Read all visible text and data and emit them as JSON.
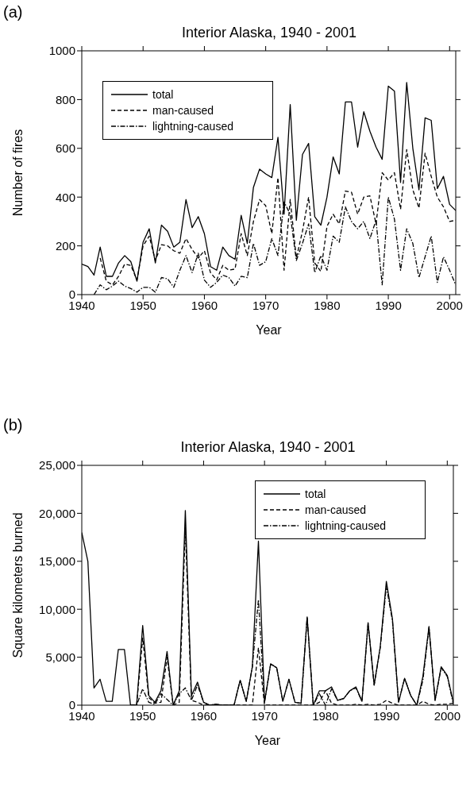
{
  "chart_data": [
    {
      "type": "line",
      "title": "Interior Alaska, 1940 - 2001",
      "annotations": [
        "(a)"
      ],
      "xlabel": "Year",
      "ylabel": "Number of fires",
      "x": [
        1940,
        1941,
        1942,
        1943,
        1944,
        1945,
        1946,
        1947,
        1948,
        1949,
        1950,
        1951,
        1952,
        1953,
        1954,
        1955,
        1956,
        1957,
        1958,
        1959,
        1960,
        1961,
        1962,
        1963,
        1964,
        1965,
        1966,
        1967,
        1968,
        1969,
        1970,
        1971,
        1972,
        1973,
        1974,
        1975,
        1976,
        1977,
        1978,
        1979,
        1980,
        1981,
        1982,
        1983,
        1984,
        1985,
        1986,
        1987,
        1988,
        1989,
        1990,
        1991,
        1992,
        1993,
        1994,
        1995,
        1996,
        1997,
        1998,
        1999,
        2000,
        2001
      ],
      "series": [
        {
          "name": "total",
          "color": "#000000",
          "line_style": "solid",
          "values": [
            125,
            115,
            80,
            195,
            75,
            75,
            130,
            160,
            135,
            55,
            215,
            270,
            130,
            285,
            260,
            195,
            215,
            390,
            275,
            320,
            250,
            115,
            100,
            195,
            160,
            145,
            325,
            210,
            440,
            515,
            495,
            480,
            645,
            330,
            780,
            305,
            575,
            620,
            320,
            285,
            400,
            565,
            495,
            790,
            790,
            605,
            750,
            670,
            605,
            555,
            855,
            835,
            460,
            870,
            600,
            430,
            725,
            715,
            435,
            485,
            370,
            345
          ]
        },
        {
          "name": "man-caused",
          "color": "#000000",
          "line_style": "dashed",
          "values": [
            null,
            null,
            null,
            150,
            55,
            40,
            75,
            125,
            120,
            60,
            200,
            240,
            140,
            205,
            200,
            180,
            170,
            230,
            185,
            150,
            180,
            90,
            60,
            120,
            100,
            105,
            250,
            160,
            300,
            390,
            365,
            250,
            480,
            100,
            390,
            150,
            260,
            400,
            130,
            95,
            280,
            330,
            290,
            425,
            420,
            330,
            400,
            405,
            290,
            500,
            470,
            500,
            350,
            595,
            430,
            355,
            580,
            485,
            400,
            360,
            300,
            305
          ]
        },
        {
          "name": "lightning-caused",
          "color": "#000000",
          "line_style": "dotted",
          "values": [
            null,
            null,
            0,
            40,
            20,
            35,
            55,
            35,
            25,
            10,
            30,
            30,
            10,
            70,
            65,
            30,
            100,
            160,
            90,
            170,
            60,
            30,
            50,
            80,
            70,
            35,
            75,
            70,
            210,
            120,
            135,
            230,
            160,
            380,
            330,
            140,
            210,
            290,
            90,
            160,
            100,
            240,
            215,
            360,
            300,
            270,
            300,
            230,
            305,
            40,
            400,
            310,
            100,
            270,
            210,
            70,
            155,
            240,
            50,
            155,
            100,
            40
          ]
        }
      ],
      "xlim": [
        1940,
        2001
      ],
      "xticks": [
        1940,
        1950,
        1960,
        1970,
        1980,
        1990,
        2000
      ],
      "ylim": [
        0,
        1000
      ],
      "yticks": [
        0,
        200,
        400,
        600,
        800,
        1000
      ],
      "grid": false,
      "legend": "top left"
    },
    {
      "type": "line",
      "title": "Interior Alaska, 1940 - 2001",
      "annotations": [
        "(b)"
      ],
      "xlabel": "Year",
      "ylabel": "Square kilometers burned",
      "x": [
        1940,
        1941,
        1942,
        1943,
        1944,
        1945,
        1946,
        1947,
        1948,
        1949,
        1950,
        1951,
        1952,
        1953,
        1954,
        1955,
        1956,
        1957,
        1958,
        1959,
        1960,
        1961,
        1962,
        1963,
        1964,
        1965,
        1966,
        1967,
        1968,
        1969,
        1970,
        1971,
        1972,
        1973,
        1974,
        1975,
        1976,
        1977,
        1978,
        1979,
        1980,
        1981,
        1982,
        1983,
        1984,
        1985,
        1986,
        1987,
        1988,
        1989,
        1990,
        1991,
        1992,
        1993,
        1994,
        1995,
        1996,
        1997,
        1998,
        1999,
        2000,
        2001
      ],
      "series": [
        {
          "name": "total",
          "color": "#000000",
          "line_style": "solid",
          "values": [
            18000,
            15000,
            1800,
            2700,
            400,
            400,
            5800,
            5800,
            0,
            0,
            8300,
            1000,
            300,
            1500,
            5600,
            0,
            1500,
            20300,
            1000,
            2400,
            300,
            0,
            100,
            0,
            0,
            0,
            2600,
            400,
            4000,
            17100,
            300,
            4300,
            3900,
            400,
            2700,
            300,
            200,
            9200,
            0,
            1500,
            1500,
            1900,
            500,
            700,
            1500,
            1900,
            400,
            8600,
            2100,
            6100,
            12900,
            9000,
            300,
            2800,
            1000,
            0,
            3000,
            8200,
            500,
            4000,
            3100,
            300
          ]
        },
        {
          "name": "man-caused",
          "color": "#000000",
          "line_style": "dashed",
          "values": [
            null,
            null,
            null,
            null,
            null,
            null,
            null,
            null,
            0,
            0,
            7000,
            800,
            200,
            300,
            5000,
            0,
            300,
            18500,
            500,
            300,
            0,
            0,
            0,
            0,
            0,
            0,
            0,
            0,
            0,
            6000,
            0,
            0,
            0,
            0,
            0,
            0,
            0,
            0,
            0,
            300,
            1500,
            200,
            0,
            0,
            0,
            100,
            0,
            100,
            0,
            100,
            500,
            200,
            0,
            0,
            0,
            0,
            400,
            100,
            0,
            100,
            100,
            200
          ]
        },
        {
          "name": "lightning-caused",
          "color": "#000000",
          "line_style": "dotted",
          "values": [
            null,
            null,
            null,
            null,
            null,
            null,
            null,
            null,
            0,
            0,
            1700,
            300,
            100,
            1200,
            600,
            0,
            1200,
            1800,
            500,
            2100,
            300,
            0,
            100,
            0,
            0,
            0,
            2600,
            400,
            4000,
            11000,
            300,
            4300,
            3900,
            400,
            2700,
            300,
            200,
            9200,
            0,
            1200,
            0,
            1700,
            500,
            700,
            1500,
            1800,
            400,
            8500,
            2100,
            6000,
            12400,
            8800,
            300,
            2800,
            1000,
            0,
            2600,
            8100,
            500,
            3900,
            3000,
            100
          ]
        }
      ],
      "xlim": [
        1940,
        2001
      ],
      "xticks": [
        1940,
        1950,
        1960,
        1970,
        1980,
        1990,
        2000
      ],
      "ylim": [
        0,
        25000
      ],
      "yticks": [
        0,
        {
          "value": 5000,
          "label": "5,000"
        },
        {
          "value": 10000,
          "label": "10,000"
        },
        {
          "value": 15000,
          "label": "15,000"
        },
        {
          "value": 20000,
          "label": "20,000"
        },
        {
          "value": 25000,
          "label": "25,000"
        }
      ],
      "grid": false,
      "legend": "top right"
    }
  ]
}
